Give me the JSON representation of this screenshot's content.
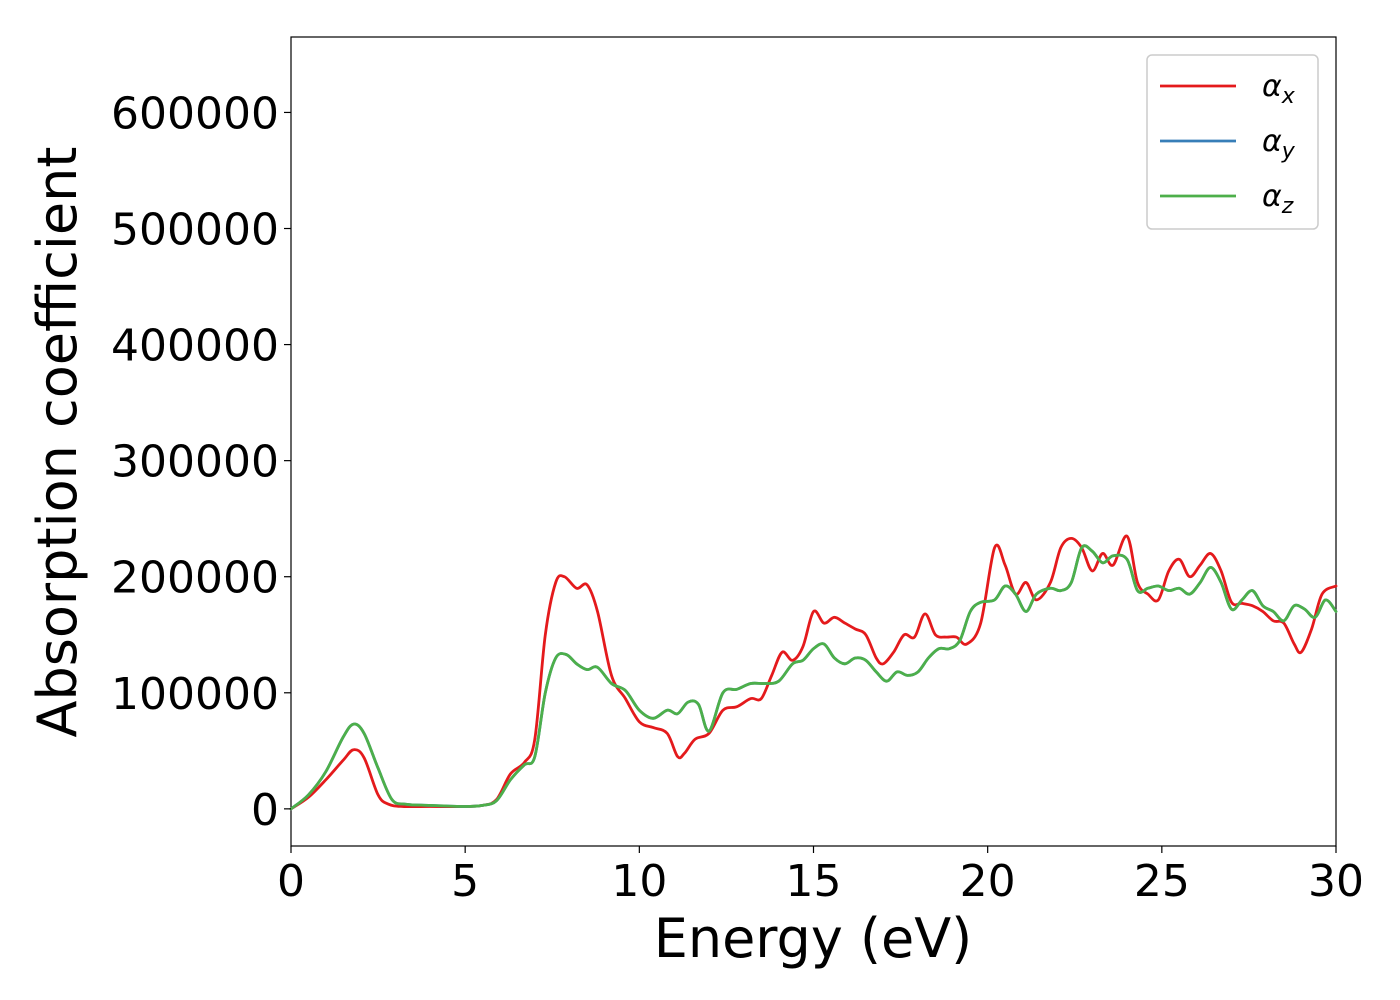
{
  "chart_data": {
    "type": "line",
    "title": "",
    "xlabel": "Energy (eV)",
    "ylabel": "Absorption coefficient",
    "xlim": [
      0,
      30
    ],
    "ylim": [
      -32000,
      665000
    ],
    "xticks": [
      0,
      5,
      10,
      15,
      20,
      25,
      30
    ],
    "yticks": [
      0,
      100000,
      200000,
      300000,
      400000,
      500000,
      600000
    ],
    "grid": false,
    "legend_position": "top-right",
    "series": [
      {
        "name": "α",
        "subscript": "x",
        "color": "#e41a1c",
        "x": [
          0,
          0.5,
          1.0,
          1.5,
          1.8,
          2.1,
          2.5,
          2.8,
          3.2,
          4.0,
          5.0,
          5.5,
          5.9,
          6.3,
          6.7,
          7.0,
          7.3,
          7.6,
          7.85,
          8.2,
          8.5,
          8.8,
          9.2,
          9.6,
          10.0,
          10.4,
          10.8,
          11.1,
          11.3,
          11.6,
          12.0,
          12.4,
          12.8,
          13.2,
          13.5,
          13.8,
          14.1,
          14.4,
          14.7,
          15.0,
          15.3,
          15.6,
          15.9,
          16.2,
          16.5,
          16.8,
          17.0,
          17.3,
          17.6,
          17.9,
          18.2,
          18.5,
          18.8,
          19.1,
          19.4,
          19.8,
          20.2,
          20.5,
          20.8,
          21.1,
          21.4,
          21.8,
          22.1,
          22.4,
          22.7,
          23.0,
          23.3,
          23.6,
          24.0,
          24.3,
          24.6,
          24.9,
          25.2,
          25.5,
          25.8,
          26.1,
          26.4,
          26.7,
          27.0,
          27.3,
          27.6,
          27.9,
          28.2,
          28.5,
          28.8,
          29.0,
          29.3,
          29.6,
          30.0
        ],
        "y": [
          0,
          10000,
          25000,
          42000,
          51000,
          44000,
          12000,
          4000,
          2000,
          2000,
          2000,
          3000,
          8000,
          30000,
          40000,
          60000,
          150000,
          195000,
          200000,
          190000,
          193000,
          170000,
          115000,
          95000,
          75000,
          70000,
          65000,
          45000,
          48000,
          60000,
          65000,
          85000,
          88000,
          95000,
          95000,
          115000,
          135000,
          128000,
          140000,
          170000,
          160000,
          165000,
          160000,
          155000,
          150000,
          130000,
          125000,
          135000,
          150000,
          148000,
          168000,
          150000,
          148000,
          148000,
          142000,
          160000,
          225000,
          210000,
          185000,
          195000,
          180000,
          195000,
          225000,
          233000,
          225000,
          205000,
          220000,
          210000,
          235000,
          195000,
          185000,
          180000,
          205000,
          215000,
          200000,
          210000,
          220000,
          205000,
          178000,
          177000,
          175000,
          170000,
          162000,
          160000,
          142000,
          135000,
          155000,
          185000,
          192000
        ]
      },
      {
        "name": "α",
        "subscript": "y",
        "color": "#377eb8",
        "x": [
          0,
          0.5,
          1.0,
          1.5,
          1.8,
          2.1,
          2.5,
          2.9,
          3.3,
          4.0,
          5.0,
          5.5,
          5.9,
          6.3,
          6.7,
          7.0,
          7.3,
          7.6,
          7.9,
          8.2,
          8.5,
          8.8,
          9.2,
          9.6,
          10.0,
          10.4,
          10.8,
          11.1,
          11.4,
          11.7,
          12.0,
          12.4,
          12.8,
          13.2,
          13.6,
          14.0,
          14.4,
          14.7,
          15.0,
          15.3,
          15.6,
          15.9,
          16.2,
          16.5,
          16.8,
          17.1,
          17.4,
          17.7,
          18.0,
          18.3,
          18.6,
          18.9,
          19.2,
          19.5,
          19.8,
          20.2,
          20.5,
          20.8,
          21.1,
          21.4,
          21.8,
          22.1,
          22.4,
          22.7,
          23.0,
          23.3,
          23.6,
          24.0,
          24.3,
          24.6,
          24.9,
          25.2,
          25.5,
          25.8,
          26.1,
          26.4,
          26.7,
          27.0,
          27.3,
          27.6,
          27.9,
          28.2,
          28.5,
          28.8,
          29.1,
          29.4,
          29.7,
          30.0
        ],
        "y": [
          0,
          12000,
          32000,
          62000,
          73000,
          65000,
          35000,
          8000,
          4000,
          3000,
          2000,
          3000,
          7000,
          25000,
          38000,
          45000,
          100000,
          130000,
          133000,
          125000,
          120000,
          122000,
          108000,
          102000,
          85000,
          78000,
          85000,
          82000,
          92000,
          90000,
          67000,
          100000,
          103000,
          108000,
          108000,
          110000,
          125000,
          128000,
          138000,
          142000,
          130000,
          125000,
          130000,
          128000,
          118000,
          110000,
          118000,
          115000,
          118000,
          130000,
          138000,
          138000,
          145000,
          170000,
          178000,
          180000,
          192000,
          185000,
          170000,
          185000,
          190000,
          188000,
          195000,
          225000,
          222000,
          212000,
          218000,
          215000,
          188000,
          190000,
          192000,
          188000,
          190000,
          185000,
          195000,
          208000,
          195000,
          172000,
          180000,
          188000,
          175000,
          170000,
          162000,
          175000,
          172000,
          165000,
          180000,
          170000
        ]
      },
      {
        "name": "α",
        "subscript": "z",
        "color": "#4daf4a",
        "x": [
          0,
          0.5,
          1.0,
          1.5,
          1.8,
          2.1,
          2.5,
          2.9,
          3.3,
          4.0,
          5.0,
          5.5,
          5.9,
          6.3,
          6.7,
          7.0,
          7.3,
          7.6,
          7.9,
          8.2,
          8.5,
          8.8,
          9.2,
          9.6,
          10.0,
          10.4,
          10.8,
          11.1,
          11.4,
          11.7,
          12.0,
          12.4,
          12.8,
          13.2,
          13.6,
          14.0,
          14.4,
          14.7,
          15.0,
          15.3,
          15.6,
          15.9,
          16.2,
          16.5,
          16.8,
          17.1,
          17.4,
          17.7,
          18.0,
          18.3,
          18.6,
          18.9,
          19.2,
          19.5,
          19.8,
          20.2,
          20.5,
          20.8,
          21.1,
          21.4,
          21.8,
          22.1,
          22.4,
          22.7,
          23.0,
          23.3,
          23.6,
          24.0,
          24.3,
          24.6,
          24.9,
          25.2,
          25.5,
          25.8,
          26.1,
          26.4,
          26.7,
          27.0,
          27.3,
          27.6,
          27.9,
          28.2,
          28.5,
          28.8,
          29.1,
          29.4,
          29.7,
          30.0
        ],
        "y": [
          0,
          12000,
          32000,
          62000,
          73000,
          65000,
          35000,
          8000,
          4000,
          3000,
          2000,
          3000,
          7000,
          25000,
          38000,
          45000,
          100000,
          130000,
          133000,
          125000,
          120000,
          122000,
          108000,
          102000,
          85000,
          78000,
          85000,
          82000,
          92000,
          90000,
          67000,
          100000,
          103000,
          108000,
          108000,
          110000,
          125000,
          128000,
          138000,
          142000,
          130000,
          125000,
          130000,
          128000,
          118000,
          110000,
          118000,
          115000,
          118000,
          130000,
          138000,
          138000,
          145000,
          170000,
          178000,
          180000,
          192000,
          185000,
          170000,
          185000,
          190000,
          188000,
          195000,
          225000,
          222000,
          212000,
          218000,
          215000,
          188000,
          190000,
          192000,
          188000,
          190000,
          185000,
          195000,
          208000,
          195000,
          172000,
          180000,
          188000,
          175000,
          170000,
          162000,
          175000,
          172000,
          165000,
          180000,
          170000
        ]
      }
    ]
  }
}
